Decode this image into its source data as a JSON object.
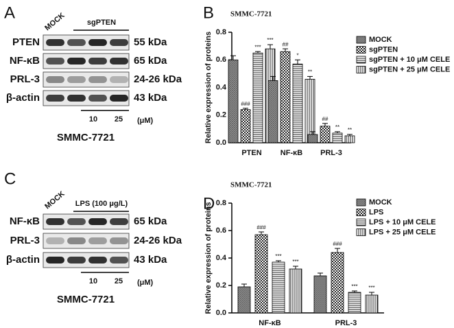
{
  "panel_letters": [
    "A",
    "B",
    "C",
    "D"
  ],
  "blots": [
    {
      "treatment": [
        "MOCK",
        "sgPTEN"
      ],
      "bands": [
        {
          "protein": "PTEN",
          "size": "55 kDa"
        },
        {
          "protein": "NF-κB",
          "size": "65 kDa"
        },
        {
          "protein": "PRL-3",
          "size": "24-26 kDa"
        },
        {
          "protein": "β-actin",
          "size": "43 kDa"
        }
      ],
      "doses": [
        "10",
        "25"
      ],
      "unit": "(μM)",
      "cell_line": "SMMC-7721"
    },
    {
      "treatment": [
        "MOCK",
        "LPS (100 μg/L)"
      ],
      "bands": [
        {
          "protein": "NF-κB",
          "size": "65 kDa"
        },
        {
          "protein": "PRL-3",
          "size": "24-26 kDa"
        },
        {
          "protein": "β-actin",
          "size": "43 kDa"
        }
      ],
      "doses": [
        "10",
        "25"
      ],
      "unit": "(μM)",
      "cell_line": "SMMC-7721"
    }
  ],
  "chart_data": [
    {
      "type": "bar",
      "title": "SMMC-7721",
      "y_label": "Relative expression of proteins",
      "categories": [
        "PTEN",
        "NF-κB",
        "PRL-3"
      ],
      "ylim": [
        0,
        0.8
      ],
      "yticks": [
        {
          "value": 0,
          "label": "0.0"
        },
        0.2,
        0.4,
        0.6,
        0.8
      ],
      "series": [
        {
          "name": "MOCK",
          "color": "#000000",
          "pattern": "crosshatch",
          "values": [
            0.6,
            0.45,
            0.06
          ],
          "errors": [
            0.03,
            0.03,
            0.02
          ],
          "annotations": [
            null,
            null,
            null
          ]
        },
        {
          "name": "sgPTEN",
          "color": "#000000",
          "pattern": "checker",
          "values": [
            0.24,
            0.66,
            0.12
          ],
          "errors": [
            0.01,
            0.02,
            0.02
          ],
          "annotations": [
            "###",
            "##",
            "##"
          ]
        },
        {
          "name": "sgPTEN + 10 μM CELE",
          "color": "#000000",
          "pattern": "hlines",
          "values": [
            0.65,
            0.57,
            0.07
          ],
          "errors": [
            0.01,
            0.03,
            0.01
          ],
          "annotations": [
            "***",
            "*",
            "**"
          ]
        },
        {
          "name": "sgPTEN + 25 μM CELE",
          "color": "#000000",
          "pattern": "vlines",
          "values": [
            0.68,
            0.46,
            0.05
          ],
          "errors": [
            0.03,
            0.02,
            0.01
          ],
          "annotations": [
            "***",
            "**",
            "**"
          ]
        }
      ]
    },
    {
      "type": "bar",
      "title": "SMMC-7721",
      "y_label": "Relative expression of proteins",
      "categories": [
        "NF-κB",
        "PRL-3"
      ],
      "ylim": [
        0,
        0.8
      ],
      "yticks": [
        {
          "value": 0,
          "label": "0.0"
        },
        0.2,
        0.4,
        0.6,
        0.8
      ],
      "series": [
        {
          "name": "MOCK",
          "color": "#000000",
          "pattern": "crosshatch",
          "values": [
            0.19,
            0.27
          ],
          "errors": [
            0.02,
            0.02
          ],
          "annotations": [
            null,
            null
          ]
        },
        {
          "name": "LPS",
          "color": "#000000",
          "pattern": "checker",
          "values": [
            0.57,
            0.44
          ],
          "errors": [
            0.02,
            0.03
          ],
          "annotations": [
            "###",
            "###"
          ]
        },
        {
          "name": "LPS + 10 μM CELE",
          "color": "#000000",
          "pattern": "hlines",
          "values": [
            0.37,
            0.15
          ],
          "errors": [
            0.01,
            0.01
          ],
          "annotations": [
            "***",
            "***"
          ]
        },
        {
          "name": "LPS + 25 μM CELE",
          "color": "#000000",
          "pattern": "vlines",
          "values": [
            0.32,
            0.13
          ],
          "errors": [
            0.02,
            0.02
          ],
          "annotations": [
            "***",
            "***"
          ]
        }
      ]
    }
  ]
}
